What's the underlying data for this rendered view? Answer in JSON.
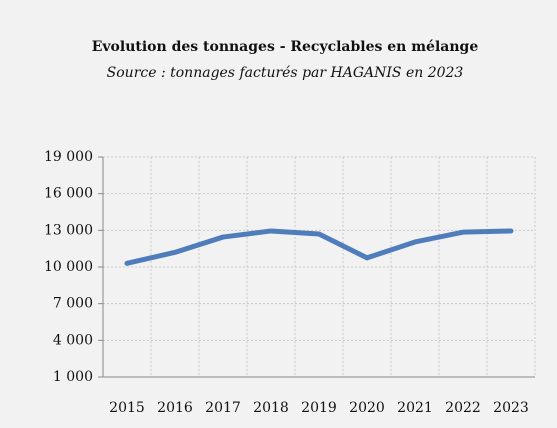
{
  "chart_data": {
    "type": "line",
    "title": "Evolution des tonnages - Recyclables en mélange",
    "subtitle": "Source : tonnages facturés par HAGANIS en 2023",
    "categories": [
      "2015",
      "2016",
      "2017",
      "2018",
      "2019",
      "2020",
      "2021",
      "2022",
      "2023"
    ],
    "series": [
      {
        "name": "Recyclables en mélange",
        "color": "#4f7dbb",
        "values": [
          10300,
          11200,
          12450,
          12950,
          12700,
          10750,
          12050,
          12850,
          12950
        ]
      }
    ],
    "ylim": [
      1000,
      19000
    ],
    "yticks": [
      {
        "value": 1000,
        "label": "1 000"
      },
      {
        "value": 4000,
        "label": "4 000"
      },
      {
        "value": 7000,
        "label": "7 000"
      },
      {
        "value": 10000,
        "label": "10 000"
      },
      {
        "value": 13000,
        "label": "13 000"
      },
      {
        "value": 16000,
        "label": "16 000"
      },
      {
        "value": 19000,
        "label": "19 000"
      }
    ],
    "grid": true
  }
}
